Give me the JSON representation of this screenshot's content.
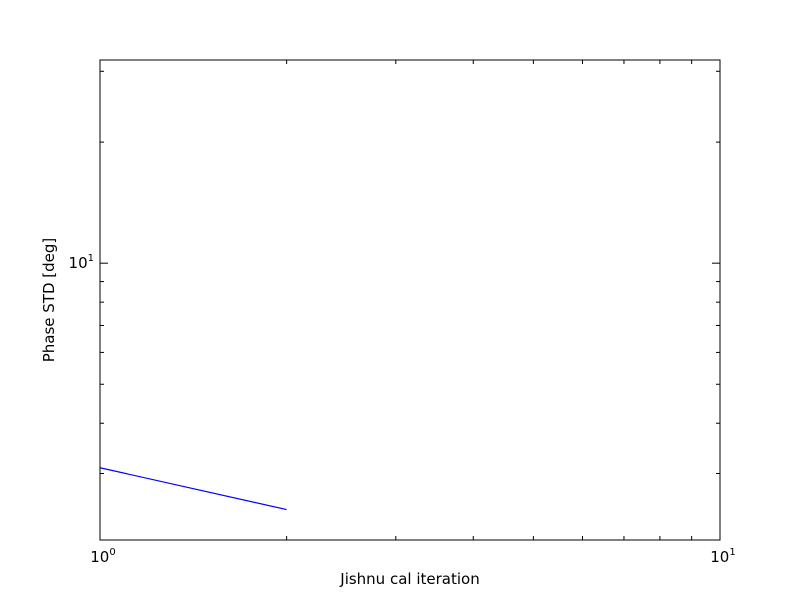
{
  "chart_data": {
    "type": "line",
    "title": "",
    "xlabel": "Jishnu cal iteration",
    "ylabel": "Phase STD [deg]",
    "xscale": "log",
    "yscale": "log",
    "xlim": [
      1,
      10
    ],
    "ylim": [
      2.05,
      32
    ],
    "grid": false,
    "legend": "none",
    "x_ticks": [
      {
        "value": 1,
        "base": "10",
        "exp": "0"
      },
      {
        "value": 10,
        "base": "10",
        "exp": "1"
      }
    ],
    "y_ticks": [
      {
        "value": 10,
        "base": "10",
        "exp": "1"
      }
    ],
    "series": [
      {
        "color": "#0000ff",
        "x": [
          1,
          2
        ],
        "y": [
          3.1,
          2.44
        ]
      }
    ]
  }
}
